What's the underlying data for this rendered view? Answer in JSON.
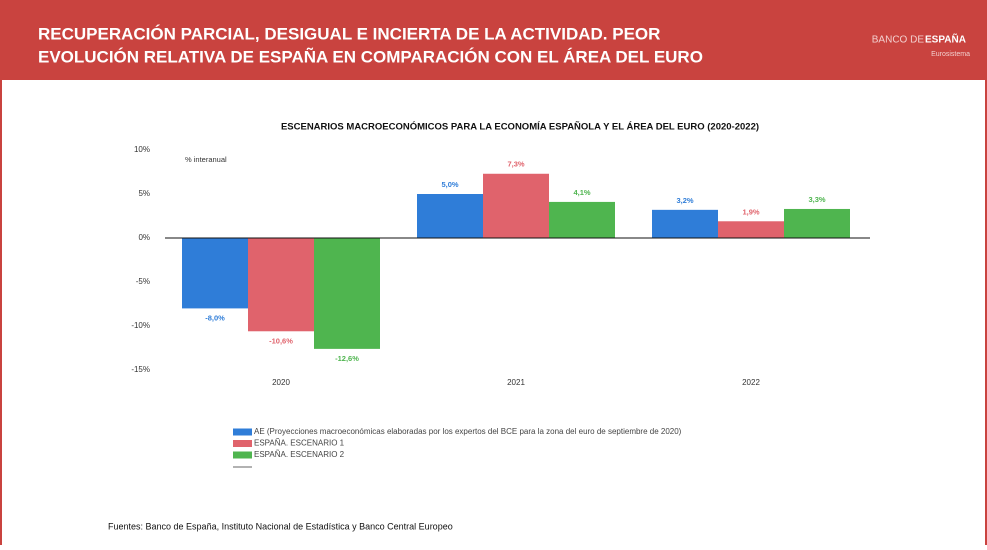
{
  "header": {
    "title_lines": [
      "RECUPERACIÓN PARCIAL, DESIGUAL E INCIERTA DE LA ACTIVIDAD. PEOR",
      "EVOLUCIÓN RELATIVA DE ESPAÑA EN COMPARACIÓN CON EL ÁREA DEL EURO"
    ],
    "logo_a": "BANCO DE",
    "logo_b": "ESPAÑA",
    "logo_sub": "Eurosistema"
  },
  "chart_data": {
    "type": "bar",
    "title": "ESCENARIOS MACROECONÓMICOS PARA LA ECONOMÍA ESPAÑOLA Y EL ÁREA DEL EURO (2020-2022)",
    "y_label": "% interanual",
    "categories": [
      "2020",
      "2021",
      "2022"
    ],
    "series": [
      {
        "name": "AE (Proyecciones macroeconómicas elaboradas por los expertos del BCE para la zona del euro de septiembre de 2020)",
        "color": "#2f7dd8",
        "values": [
          -8.0,
          5.0,
          3.2
        ],
        "value_labels": [
          "-8,0%",
          "5,0%",
          "3,2%"
        ]
      },
      {
        "name": "ESPAÑA. ESCENARIO 1",
        "color": "#e0636c",
        "values": [
          -10.6,
          7.3,
          1.9
        ],
        "value_labels": [
          "-10,6%",
          "7,3%",
          "1,9%"
        ]
      },
      {
        "name": "ESPAÑA. ESCENARIO 2",
        "color": "#4fb54f",
        "values": [
          -12.6,
          4.1,
          3.3
        ],
        "value_labels": [
          "-12,6%",
          "4,1%",
          "3,3%"
        ]
      }
    ],
    "ylim": [
      -15,
      10
    ],
    "yticks": [
      {
        "value": 10,
        "label": "10%"
      },
      {
        "value": 5,
        "label": "5%"
      },
      {
        "value": 0,
        "label": "0%"
      },
      {
        "value": -5,
        "label": "-5%"
      },
      {
        "value": -10,
        "label": "-10%"
      },
      {
        "value": -15,
        "label": "-15%"
      }
    ],
    "grid": false
  },
  "source": "Fuentes: Banco de España, Instituto Nacional de Estadística y Banco Central Europeo"
}
